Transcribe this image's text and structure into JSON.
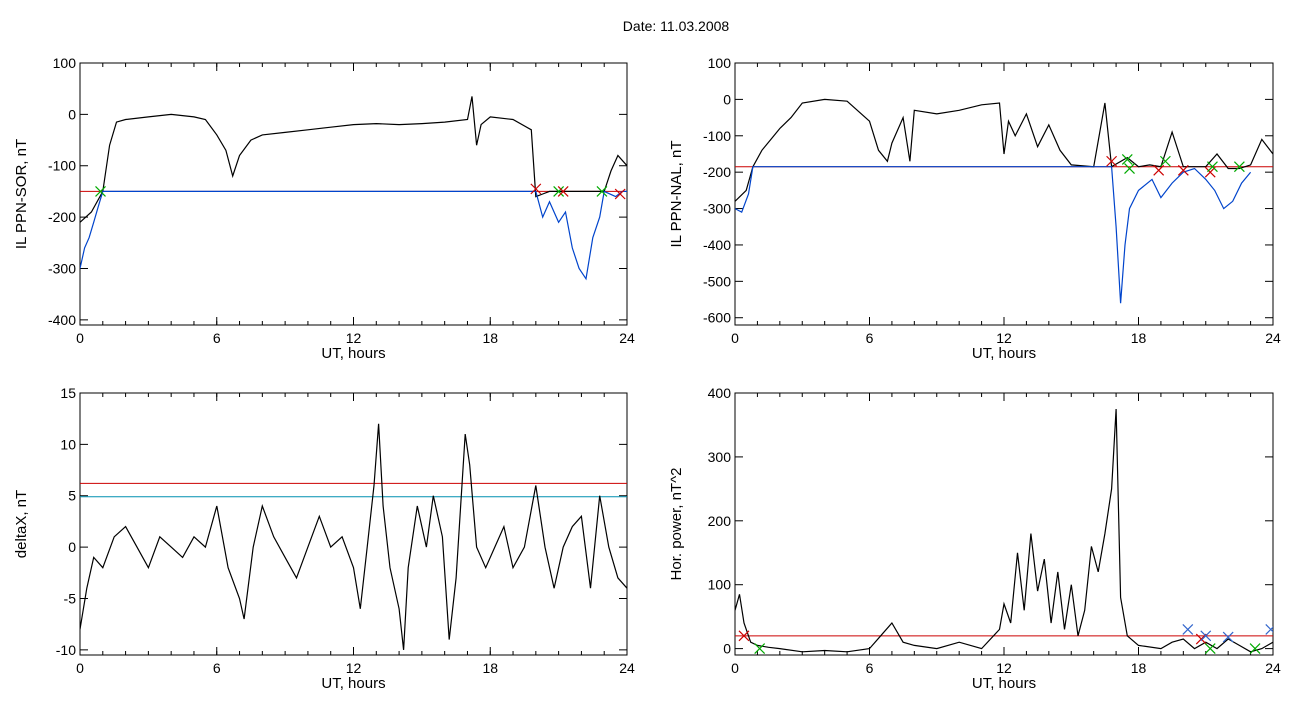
{
  "figure_title": "Date:  11.03.2008",
  "chart_data": [
    {
      "id": "ppn-sor",
      "type": "line",
      "xlabel": "UT, hours",
      "ylabel": "IL PPN-SOR, nT",
      "xlim": [
        0,
        24
      ],
      "ylim": [
        -410,
        100
      ],
      "xticks": [
        "0",
        "6",
        "12",
        "18",
        "24"
      ],
      "yticks": [
        -400,
        -300,
        -200,
        -100,
        0,
        100
      ],
      "grid": false,
      "threshold_lines": [
        {
          "y": -150,
          "color": "#cc0000"
        }
      ],
      "series": [
        {
          "color": "#000000",
          "x": [
            0,
            0.5,
            1,
            1.3,
            1.6,
            2,
            3,
            4,
            5,
            5.5,
            6,
            6.4,
            6.7,
            7,
            7.5,
            8,
            9,
            10,
            11,
            12,
            13,
            14,
            15,
            16,
            17,
            17.2,
            17.4,
            17.6,
            18,
            19,
            19.8,
            20,
            20.3,
            20.6,
            21,
            21.5,
            22,
            22.5,
            23,
            23.3,
            23.6,
            24
          ],
          "y": [
            -210,
            -190,
            -150,
            -60,
            -15,
            -10,
            -5,
            0,
            -5,
            -10,
            -40,
            -70,
            -120,
            -80,
            -50,
            -40,
            -35,
            -30,
            -25,
            -20,
            -18,
            -20,
            -18,
            -15,
            -10,
            35,
            -60,
            -20,
            -5,
            -10,
            -30,
            -160,
            -155,
            -150,
            -150,
            -150,
            -150,
            -150,
            -150,
            -110,
            -80,
            -100
          ]
        },
        {
          "color": "#0044cc",
          "x": [
            0,
            0.2,
            0.4,
            0.6,
            0.8,
            1,
            20,
            20.3,
            20.6,
            21,
            21.3,
            21.6,
            21.9,
            22.2,
            22.5,
            22.8,
            23,
            23.5,
            23.8,
            24
          ],
          "y": [
            -300,
            -260,
            -240,
            -210,
            -180,
            -150,
            -150,
            -200,
            -170,
            -210,
            -190,
            -260,
            -300,
            -320,
            -240,
            -200,
            -150,
            -160,
            -150,
            -150
          ]
        }
      ],
      "markers": [
        {
          "x": 0.9,
          "y": -150,
          "color": "#00aa00"
        },
        {
          "x": 20.0,
          "y": -145,
          "color": "#cc0000"
        },
        {
          "x": 21.0,
          "y": -150,
          "color": "#00aa00"
        },
        {
          "x": 21.2,
          "y": -150,
          "color": "#cc0000"
        },
        {
          "x": 22.9,
          "y": -150,
          "color": "#00aa00"
        },
        {
          "x": 23.7,
          "y": -155,
          "color": "#cc0000"
        }
      ]
    },
    {
      "id": "ppn-nal",
      "type": "line",
      "xlabel": "UT, hours",
      "ylabel": "IL PPN-NAL, nT",
      "xlim": [
        0,
        24
      ],
      "ylim": [
        -620,
        100
      ],
      "xticks": [
        "0",
        "6",
        "12",
        "18",
        "24"
      ],
      "yticks": [
        -600,
        -500,
        -400,
        -300,
        -200,
        -100,
        0,
        100
      ],
      "grid": false,
      "threshold_lines": [
        {
          "y": -185,
          "color": "#cc0000"
        }
      ],
      "series": [
        {
          "color": "#000000",
          "x": [
            0,
            0.5,
            0.8,
            1.2,
            1.6,
            2,
            2.5,
            3,
            4,
            5,
            6,
            6.4,
            6.8,
            7,
            7.5,
            7.8,
            8,
            9,
            10,
            11,
            11.8,
            12,
            12.2,
            12.5,
            13,
            13.5,
            14,
            14.5,
            15,
            16,
            16.5,
            16.8,
            17.5,
            18,
            18.5,
            19,
            19.5,
            20,
            21,
            21.5,
            22,
            22.5,
            23,
            23.5,
            24
          ],
          "y": [
            -280,
            -250,
            -185,
            -140,
            -110,
            -80,
            -50,
            -10,
            0,
            -5,
            -60,
            -140,
            -170,
            -120,
            -50,
            -170,
            -30,
            -40,
            -30,
            -15,
            -10,
            -150,
            -60,
            -100,
            -40,
            -130,
            -70,
            -140,
            -180,
            -185,
            -10,
            -185,
            -160,
            -185,
            -180,
            -185,
            -90,
            -185,
            -185,
            -150,
            -190,
            -190,
            -180,
            -110,
            -150
          ]
        },
        {
          "color": "#0044cc",
          "x": [
            0,
            0.3,
            0.6,
            0.8,
            16.8,
            17.0,
            17.2,
            17.4,
            17.6,
            18,
            18.6,
            19,
            19.5,
            20,
            20.5,
            21,
            21.4,
            21.8,
            22.2,
            22.6,
            23
          ],
          "y": [
            -300,
            -310,
            -260,
            -185,
            -185,
            -350,
            -560,
            -400,
            -300,
            -250,
            -220,
            -270,
            -230,
            -200,
            -190,
            -220,
            -250,
            -300,
            -280,
            -230,
            -200
          ]
        }
      ],
      "markers": [
        {
          "x": 16.8,
          "y": -170,
          "color": "#cc0000"
        },
        {
          "x": 17.5,
          "y": -165,
          "color": "#00aa00"
        },
        {
          "x": 17.6,
          "y": -190,
          "color": "#00aa00"
        },
        {
          "x": 18.9,
          "y": -195,
          "color": "#cc0000"
        },
        {
          "x": 19.2,
          "y": -170,
          "color": "#00aa00"
        },
        {
          "x": 20.0,
          "y": -195,
          "color": "#cc0000"
        },
        {
          "x": 21.2,
          "y": -200,
          "color": "#cc0000"
        },
        {
          "x": 21.3,
          "y": -185,
          "color": "#00aa00"
        },
        {
          "x": 22.5,
          "y": -185,
          "color": "#00aa00"
        }
      ]
    },
    {
      "id": "deltax",
      "type": "line",
      "xlabel": "UT, hours",
      "ylabel": "deltaX, nT",
      "xlim": [
        0,
        24
      ],
      "ylim": [
        -10.5,
        15
      ],
      "xticks": [
        "0",
        "6",
        "12",
        "18",
        "24"
      ],
      "yticks": [
        -10,
        -5,
        0,
        5,
        10,
        15
      ],
      "grid": false,
      "threshold_lines": [
        {
          "y": 6.2,
          "color": "#cc0000"
        },
        {
          "y": 4.9,
          "color": "#008fb0"
        }
      ],
      "series": [
        {
          "color": "#000000",
          "x": [
            0,
            0.3,
            0.6,
            1,
            1.5,
            2,
            2.5,
            3,
            3.5,
            4,
            4.5,
            5,
            5.5,
            6,
            6.5,
            7,
            7.2,
            7.6,
            8,
            8.5,
            9,
            9.5,
            10,
            10.5,
            11,
            11.5,
            12,
            12.3,
            12.6,
            12.9,
            13.1,
            13.3,
            13.6,
            14,
            14.2,
            14.4,
            14.8,
            15.2,
            15.5,
            15.9,
            16.2,
            16.5,
            16.9,
            17.1,
            17.4,
            17.8,
            18.2,
            18.6,
            19,
            19.5,
            20,
            20.4,
            20.8,
            21.2,
            21.6,
            22,
            22.4,
            22.8,
            23.2,
            23.6,
            24
          ],
          "y": [
            -8,
            -4,
            -1,
            -2,
            1,
            2,
            0,
            -2,
            1,
            0,
            -1,
            1,
            0,
            4,
            -2,
            -5,
            -7,
            0,
            4,
            1,
            -1,
            -3,
            0,
            3,
            0,
            1,
            -2,
            -6,
            0,
            6,
            12,
            4,
            -2,
            -6,
            -10,
            -2,
            4,
            0,
            5,
            1,
            -9,
            -3,
            11,
            8,
            0,
            -2,
            0,
            2,
            -2,
            0,
            6,
            0,
            -4,
            0,
            2,
            3,
            -4,
            5,
            0,
            -3,
            -4
          ]
        }
      ],
      "markers": []
    },
    {
      "id": "hor-power",
      "type": "line",
      "xlabel": "UT, hours",
      "ylabel": "Hor. power, nT^2",
      "xlim": [
        0,
        24
      ],
      "ylim": [
        -10,
        400
      ],
      "xticks": [
        "0",
        "6",
        "12",
        "18",
        "24"
      ],
      "yticks": [
        0,
        100,
        200,
        300,
        400
      ],
      "grid": false,
      "threshold_lines": [
        {
          "y": 20,
          "color": "#cc0000"
        }
      ],
      "series": [
        {
          "color": "#000000",
          "x": [
            0,
            0.2,
            0.4,
            0.7,
            1,
            1.5,
            2,
            3,
            4,
            5,
            6,
            6.5,
            7,
            7.5,
            8,
            9,
            10,
            11,
            11.8,
            12,
            12.3,
            12.6,
            12.9,
            13.2,
            13.5,
            13.8,
            14.1,
            14.4,
            14.7,
            15,
            15.3,
            15.6,
            15.9,
            16.2,
            16.5,
            16.8,
            17.0,
            17.2,
            17.5,
            18,
            19,
            19.5,
            20,
            20.5,
            21,
            21.5,
            22,
            22.5,
            23,
            23.5,
            24
          ],
          "y": [
            60,
            85,
            40,
            10,
            5,
            2,
            0,
            -5,
            -3,
            -5,
            0,
            20,
            40,
            10,
            5,
            0,
            10,
            0,
            30,
            70,
            40,
            150,
            60,
            180,
            90,
            140,
            40,
            120,
            30,
            100,
            20,
            60,
            160,
            120,
            180,
            250,
            375,
            80,
            20,
            5,
            0,
            10,
            15,
            0,
            10,
            0,
            15,
            5,
            -5,
            0,
            10
          ]
        }
      ],
      "markers": [
        {
          "x": 0.4,
          "y": 20,
          "color": "#cc0000"
        },
        {
          "x": 1.1,
          "y": 0,
          "color": "#00aa00"
        },
        {
          "x": 20.2,
          "y": 30,
          "color": "#3366cc"
        },
        {
          "x": 20.8,
          "y": 15,
          "color": "#cc0000"
        },
        {
          "x": 21.0,
          "y": 20,
          "color": "#3366cc"
        },
        {
          "x": 21.2,
          "y": 0,
          "color": "#00aa00"
        },
        {
          "x": 22.0,
          "y": 18,
          "color": "#3366cc"
        },
        {
          "x": 23.2,
          "y": 0,
          "color": "#00aa00"
        },
        {
          "x": 23.9,
          "y": 30,
          "color": "#3366cc"
        }
      ]
    }
  ]
}
